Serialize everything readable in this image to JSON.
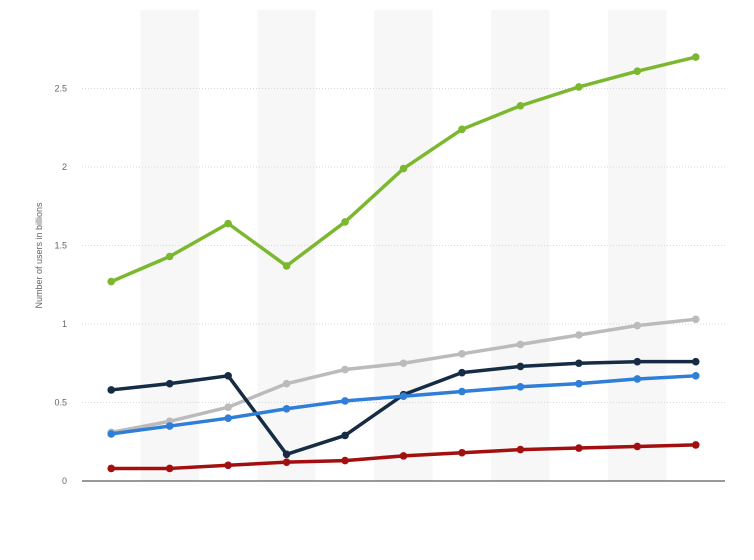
{
  "chart_data": {
    "type": "line",
    "title": "",
    "xlabel": "",
    "ylabel": "Number of users in billions",
    "ylim": [
      0,
      3
    ],
    "yticks": [
      0,
      0.5,
      1,
      1.5,
      2,
      2.5
    ],
    "ytick_labels": [
      "0",
      "0.5",
      "1",
      "1.5",
      "2",
      "2.5"
    ],
    "grid": true,
    "legend": "none",
    "x": [
      0,
      1,
      2,
      3,
      4,
      5,
      6,
      7,
      8,
      9,
      10
    ],
    "series": [
      {
        "color": "#7cb82f",
        "values": [
          1.27,
          1.43,
          1.64,
          1.37,
          1.65,
          1.99,
          2.24,
          2.39,
          2.51,
          2.61,
          2.7
        ]
      },
      {
        "color": "#bbbbbb",
        "values": [
          0.31,
          0.38,
          0.47,
          0.62,
          0.71,
          0.75,
          0.81,
          0.87,
          0.93,
          0.99,
          1.03
        ]
      },
      {
        "color": "#152c44",
        "values": [
          0.58,
          0.62,
          0.67,
          0.17,
          0.29,
          0.55,
          0.69,
          0.73,
          0.75,
          0.76,
          0.76
        ]
      },
      {
        "color": "#2f7ed8",
        "values": [
          0.3,
          0.35,
          0.4,
          0.46,
          0.51,
          0.54,
          0.57,
          0.6,
          0.62,
          0.65,
          0.67
        ]
      },
      {
        "color": "#a30f0f",
        "values": [
          0.08,
          0.08,
          0.1,
          0.12,
          0.13,
          0.16,
          0.18,
          0.2,
          0.21,
          0.22,
          0.23
        ]
      }
    ]
  }
}
